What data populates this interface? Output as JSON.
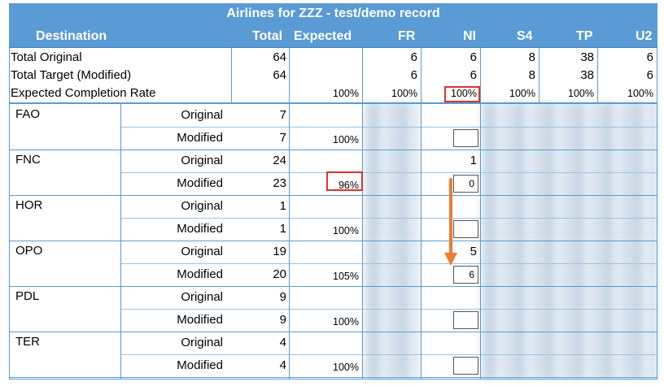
{
  "title": "Airlines for ZZZ - test/demo record",
  "columns": {
    "destination": "Destination",
    "total": "Total",
    "expected": "Expected",
    "fr": "FR",
    "ni": "NI",
    "s4": "S4",
    "tp": "TP",
    "u2": "U2"
  },
  "summary": [
    {
      "label": "Total Original",
      "total": "64",
      "expected": "",
      "fr": "6",
      "ni": "6",
      "s4": "8",
      "tp": "38",
      "u2": "6"
    },
    {
      "label": "Total Target (Modified)",
      "total": "64",
      "expected": "",
      "fr": "6",
      "ni": "6",
      "s4": "8",
      "tp": "38",
      "u2": "6"
    },
    {
      "label": "Expected Completion Rate",
      "total": "",
      "expected": "100%",
      "fr": "100%",
      "ni": "100%",
      "s4": "100%",
      "tp": "100%",
      "u2": "100%"
    }
  ],
  "destinations": [
    {
      "code": "FAO",
      "original_label": "Original",
      "modified_label": "Modified",
      "original_total": "7",
      "modified_total": "7",
      "expected": "100%",
      "ni_original": "",
      "ni_modified": ""
    },
    {
      "code": "FNC",
      "original_label": "Original",
      "modified_label": "Modified",
      "original_total": "24",
      "modified_total": "23",
      "expected": "96%",
      "ni_original": "1",
      "ni_modified": "0"
    },
    {
      "code": "HOR",
      "original_label": "Original",
      "modified_label": "Modified",
      "original_total": "1",
      "modified_total": "1",
      "expected": "100%",
      "ni_original": "",
      "ni_modified": ""
    },
    {
      "code": "OPO",
      "original_label": "Original",
      "modified_label": "Modified",
      "original_total": "19",
      "modified_total": "20",
      "expected": "105%",
      "ni_original": "5",
      "ni_modified": "6"
    },
    {
      "code": "PDL",
      "original_label": "Original",
      "modified_label": "Modified",
      "original_total": "9",
      "modified_total": "9",
      "expected": "100%",
      "ni_original": "",
      "ni_modified": ""
    },
    {
      "code": "TER",
      "original_label": "Original",
      "modified_label": "Modified",
      "original_total": "4",
      "modified_total": "4",
      "expected": "100%",
      "ni_original": "",
      "ni_modified": ""
    }
  ],
  "colors": {
    "header": "#5b9bd5",
    "highlight": "#e03030",
    "arrow": "#ed7d31"
  }
}
